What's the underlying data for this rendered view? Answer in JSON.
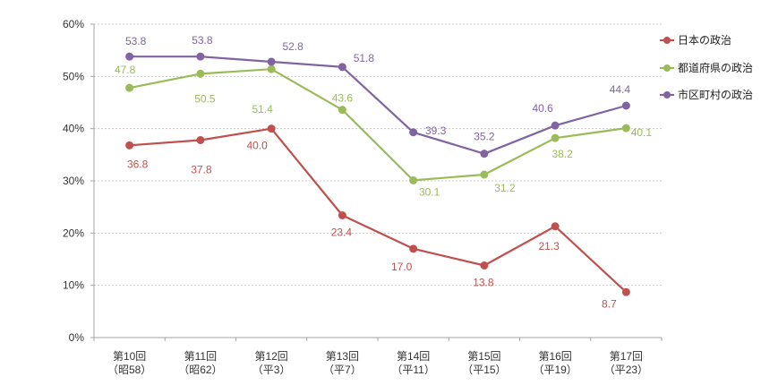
{
  "chart_data": {
    "type": "line",
    "categories": [
      "第10回",
      "第11回",
      "第12回",
      "第13回",
      "第14回",
      "第15回",
      "第16回",
      "第17回"
    ],
    "category_sublabels": [
      "（昭58）",
      "（昭62）",
      "（平3）",
      "（平7）",
      "（平11）",
      "（平15）",
      "（平19）",
      "（平23）"
    ],
    "series": [
      {
        "name": "日本の政治",
        "color": "#C0504D",
        "values": [
          36.8,
          37.8,
          40.0,
          23.4,
          17.0,
          13.8,
          21.3,
          8.7
        ]
      },
      {
        "name": "都道府県の政治",
        "color": "#9BBB59",
        "values": [
          47.8,
          50.5,
          51.4,
          43.6,
          30.1,
          31.2,
          38.2,
          40.1
        ]
      },
      {
        "name": "市区町村の政治",
        "color": "#8064A2",
        "values": [
          53.8,
          53.8,
          52.8,
          51.8,
          39.3,
          35.2,
          40.6,
          44.4
        ]
      }
    ],
    "ylim": [
      0,
      60
    ],
    "yticks": [
      0,
      10,
      20,
      30,
      40,
      50,
      60
    ],
    "ytick_labels": [
      "0%",
      "10%",
      "20%",
      "30%",
      "40%",
      "50%",
      "60%"
    ],
    "grid": true,
    "data_labels": true,
    "legend": "right"
  }
}
